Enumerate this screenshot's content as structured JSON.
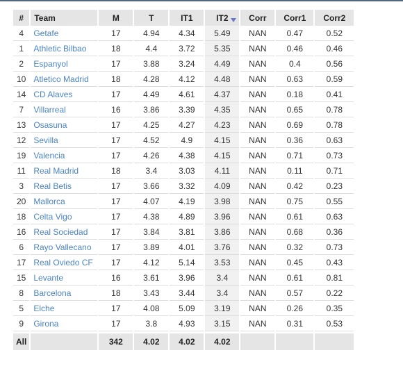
{
  "columns": [
    "#",
    "Team",
    "M",
    "T",
    "IT1",
    "IT2",
    "Corr",
    "Corr1",
    "Corr2"
  ],
  "sorted_column": "IT2",
  "rows": [
    [
      "4",
      "Getafe",
      "17",
      "4.94",
      "4.34",
      "5.49",
      "NAN",
      "0.47",
      "0.52"
    ],
    [
      "1",
      "Athletic Bilbao",
      "18",
      "4.4",
      "3.72",
      "5.35",
      "NAN",
      "0.46",
      "0.46"
    ],
    [
      "2",
      "Espanyol",
      "17",
      "3.88",
      "3.24",
      "4.49",
      "NAN",
      "0.4",
      "0.56"
    ],
    [
      "10",
      "Atletico Madrid",
      "18",
      "4.28",
      "4.12",
      "4.48",
      "NAN",
      "0.63",
      "0.59"
    ],
    [
      "14",
      "CD Alaves",
      "17",
      "4.49",
      "4.61",
      "4.37",
      "NAN",
      "0.18",
      "0.41"
    ],
    [
      "7",
      "Villarreal",
      "16",
      "3.86",
      "3.39",
      "4.35",
      "NAN",
      "0.65",
      "0.78"
    ],
    [
      "13",
      "Osasuna",
      "17",
      "4.25",
      "4.27",
      "4.23",
      "NAN",
      "0.69",
      "0.78"
    ],
    [
      "12",
      "Sevilla",
      "17",
      "4.52",
      "4.9",
      "4.15",
      "NAN",
      "0.36",
      "0.63"
    ],
    [
      "19",
      "Valencia",
      "17",
      "4.26",
      "4.38",
      "4.15",
      "NAN",
      "0.71",
      "0.73"
    ],
    [
      "11",
      "Real Madrid",
      "18",
      "3.4",
      "3.03",
      "4.11",
      "NAN",
      "0.11",
      "0.71"
    ],
    [
      "3",
      "Real Betis",
      "17",
      "3.66",
      "3.32",
      "4.09",
      "NAN",
      "0.42",
      "0.23"
    ],
    [
      "20",
      "Mallorca",
      "17",
      "4.07",
      "4.19",
      "3.98",
      "NAN",
      "0.75",
      "0.55"
    ],
    [
      "18",
      "Celta Vigo",
      "17",
      "4.38",
      "4.89",
      "3.96",
      "NAN",
      "0.61",
      "0.63"
    ],
    [
      "16",
      "Real Sociedad",
      "17",
      "3.84",
      "3.81",
      "3.86",
      "NAN",
      "0.68",
      "0.36"
    ],
    [
      "6",
      "Rayo Vallecano",
      "17",
      "3.89",
      "4.01",
      "3.76",
      "NAN",
      "0.32",
      "0.73"
    ],
    [
      "17",
      "Real Oviedo CF",
      "17",
      "4.12",
      "5.14",
      "3.53",
      "NAN",
      "0.45",
      "0.43"
    ],
    [
      "15",
      "Levante",
      "16",
      "3.61",
      "3.96",
      "3.4",
      "NAN",
      "0.61",
      "0.81"
    ],
    [
      "8",
      "Barcelona",
      "18",
      "3.43",
      "3.44",
      "3.4",
      "NAN",
      "0.57",
      "0.22"
    ],
    [
      "5",
      "Elche",
      "17",
      "4.08",
      "5.09",
      "3.19",
      "NAN",
      "0.26",
      "0.35"
    ],
    [
      "9",
      "Girona",
      "17",
      "3.8",
      "4.93",
      "3.15",
      "NAN",
      "0.31",
      "0.53"
    ]
  ],
  "footer": [
    "All",
    "",
    "342",
    "4.02",
    "4.02",
    "4.02",
    "",
    "",
    ""
  ],
  "colors": {
    "header_bg": "#e5e5e5",
    "team_link": "#4c84c4",
    "sort_indicator": "#6b78c8",
    "sorted_cell_bg": "#f1f1f1"
  },
  "icons": {
    "sort": "sort-descending-icon"
  }
}
